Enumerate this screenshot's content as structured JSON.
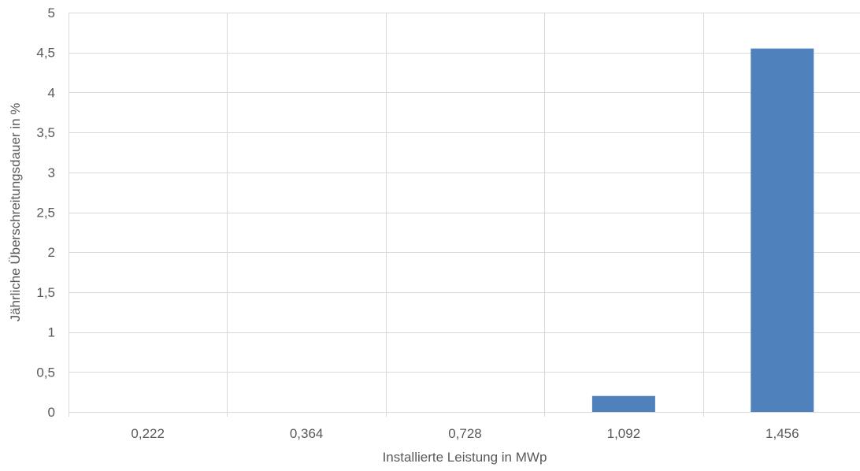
{
  "chart_data": {
    "type": "bar",
    "title": "",
    "xlabel": "Installierte  Leistung in MWp",
    "ylabel": "Jährliche Überschreitungsdauer in %",
    "categories": [
      "0,222",
      "0,364",
      "0,728",
      "1,092",
      "1,456"
    ],
    "series": [
      {
        "values": [
          0,
          0,
          0,
          0.2,
          4.55
        ]
      }
    ],
    "ylim": [
      0,
      5
    ],
    "yticks": [
      0,
      0.5,
      1,
      1.5,
      2,
      2.5,
      3,
      3.5,
      4,
      4.5,
      5
    ],
    "ytick_labels": [
      "0",
      "0,5",
      "1",
      "1,5",
      "2",
      "2,5",
      "3",
      "3,5",
      "4",
      "4,5",
      "5"
    ],
    "grid": "on",
    "legend": "none"
  },
  "colors": {
    "bar": "#4f81bd",
    "grid": "#d9d9d9",
    "text": "#595959"
  }
}
